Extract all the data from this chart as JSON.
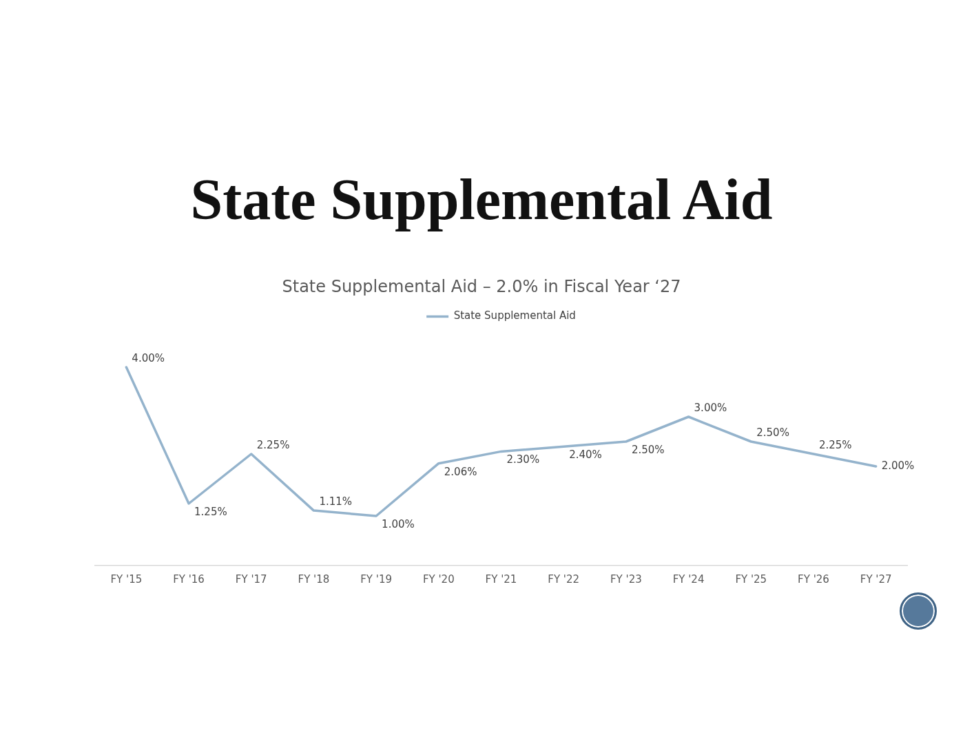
{
  "chart_data": {
    "type": "line",
    "title": "State Supplemental Aid",
    "subtitle": "State Supplemental Aid – 2.0% in Fiscal Year ‘27",
    "categories": [
      "FY '15",
      "FY '16",
      "FY '17",
      "FY '18",
      "FY '19",
      "FY '20",
      "FY '21",
      "FY '22",
      "FY '23",
      "FY '24",
      "FY '25",
      "FY '26",
      "FY '27"
    ],
    "series": [
      {
        "name": "State Supplemental Aid",
        "color": "#94b3cc",
        "values": [
          4,
          1.25,
          2.25,
          1.11,
          1,
          2.06,
          2.3,
          2.4,
          2.5,
          3,
          2.5,
          2.25,
          2
        ],
        "value_labels": [
          "4.00%",
          "1.25%",
          "2.25%",
          "1.11%",
          "1.00%",
          "2.06%",
          "2.30%",
          "2.40%",
          "2.50%",
          "3.00%",
          "2.50%",
          "2.25%",
          "2.00%"
        ]
      }
    ],
    "tick_labels": "x",
    "legend": "top",
    "grid": false,
    "marker": "none",
    "line_style": "solid"
  }
}
